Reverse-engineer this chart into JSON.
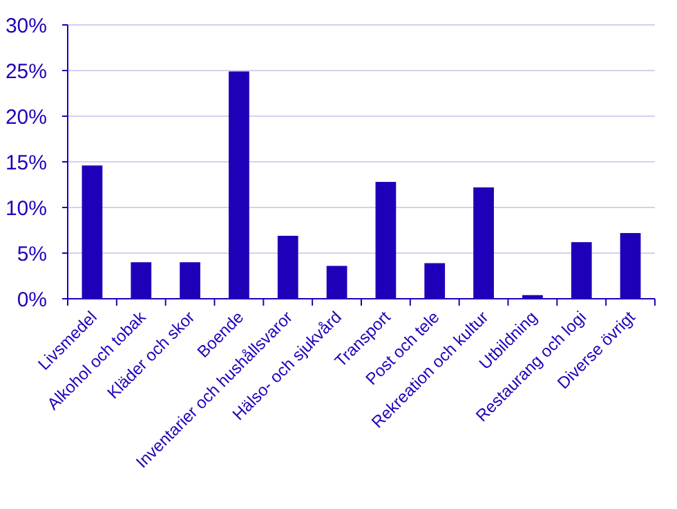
{
  "chart_data": {
    "type": "bar",
    "categories": [
      "Livsmedel",
      "Alkohol och tobak",
      "Kläder och skor",
      "Boende",
      "Inventarier och hushållsvaror",
      "Hälso- och sjukvård",
      "Transport",
      "Post och tele",
      "Rekreation och kultur",
      "Utbildning",
      "Restaurang och logi",
      "Diverse övrigt"
    ],
    "values": [
      14.6,
      4.0,
      4.0,
      24.9,
      6.9,
      3.6,
      12.8,
      3.9,
      12.2,
      0.4,
      6.2,
      7.2
    ],
    "color": "#1f00b9",
    "ylim": [
      0,
      30
    ],
    "yticks": [
      {
        "value": 0,
        "label": "0%"
      },
      {
        "value": 5,
        "label": "5%"
      },
      {
        "value": 10,
        "label": "10%"
      },
      {
        "value": 15,
        "label": "15%"
      },
      {
        "value": 20,
        "label": "20%"
      },
      {
        "value": 25,
        "label": "25%"
      },
      {
        "value": 30,
        "label": "30%"
      }
    ],
    "grid": "y"
  }
}
